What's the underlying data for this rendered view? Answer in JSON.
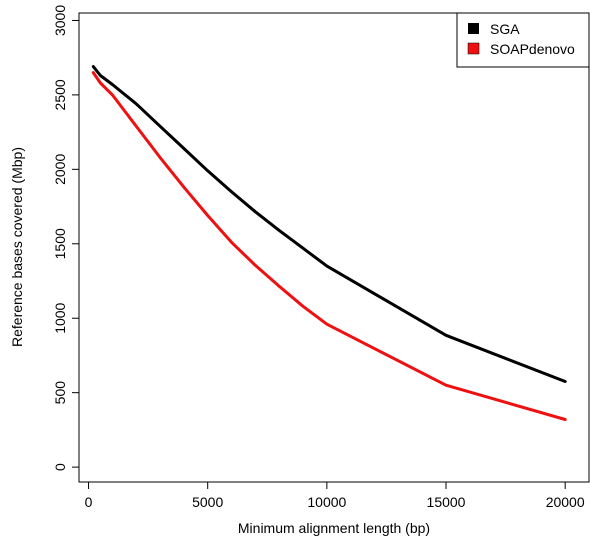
{
  "chart_data": {
    "type": "line",
    "title": "",
    "xlabel": "Minimum alignment length (bp)",
    "ylabel": "Reference bases covered (Mbp)",
    "xlim": [
      -400,
      21000
    ],
    "ylim": [
      -100,
      3050
    ],
    "xticks": [
      0,
      5000,
      10000,
      15000,
      20000
    ],
    "yticks": [
      0,
      500,
      1000,
      1500,
      2000,
      2500,
      3000
    ],
    "legend_position": "top-right",
    "grid": false,
    "series": [
      {
        "name": "SGA",
        "color": "#000000",
        "x": [
          200,
          500,
          1000,
          2000,
          3000,
          4000,
          5000,
          6000,
          7000,
          8000,
          9000,
          10000,
          15000,
          20000
        ],
        "y": [
          2690,
          2630,
          2570,
          2440,
          2290,
          2140,
          1990,
          1850,
          1715,
          1590,
          1470,
          1350,
          885,
          575
        ]
      },
      {
        "name": "SOAPdenovo",
        "color": "#ee1111",
        "x": [
          200,
          500,
          1000,
          2000,
          3000,
          4000,
          5000,
          6000,
          7000,
          8000,
          9000,
          10000,
          15000,
          20000
        ],
        "y": [
          2650,
          2580,
          2500,
          2290,
          2080,
          1880,
          1690,
          1510,
          1355,
          1215,
          1080,
          960,
          550,
          320
        ]
      }
    ]
  }
}
